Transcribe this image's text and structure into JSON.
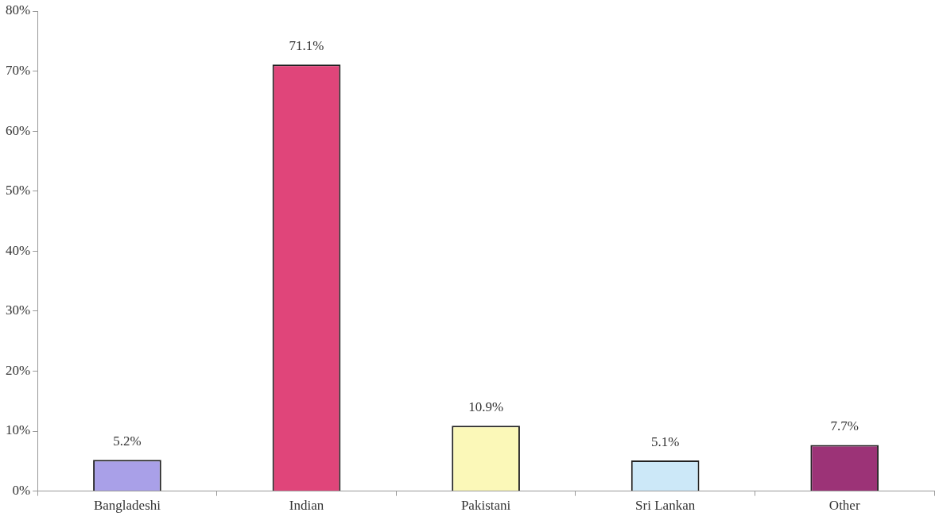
{
  "chart_data": {
    "type": "bar",
    "categories": [
      "Bangladeshi",
      "Indian",
      "Pakistani",
      "Sri Lankan",
      "Other"
    ],
    "values": [
      5.2,
      71.1,
      10.9,
      5.1,
      7.7
    ],
    "colors": [
      "#a9a0e8",
      "#e0457a",
      "#fbf8b8",
      "#cce8f8",
      "#9c3377"
    ],
    "value_labels": [
      "5.2%",
      "71.1%",
      "10.9%",
      "5.1%",
      "7.7%"
    ],
    "ylim": [
      0,
      80
    ],
    "yticks": [
      {
        "value": 0,
        "label": "0%"
      },
      {
        "value": 10,
        "label": "10%"
      },
      {
        "value": 20,
        "label": "20%"
      },
      {
        "value": 30,
        "label": "30%"
      },
      {
        "value": 40,
        "label": "40%"
      },
      {
        "value": 50,
        "label": "50%"
      },
      {
        "value": 60,
        "label": "60%"
      },
      {
        "value": 70,
        "label": "70%"
      },
      {
        "value": 80,
        "label": "80%"
      }
    ],
    "grid": false,
    "legend": false
  }
}
